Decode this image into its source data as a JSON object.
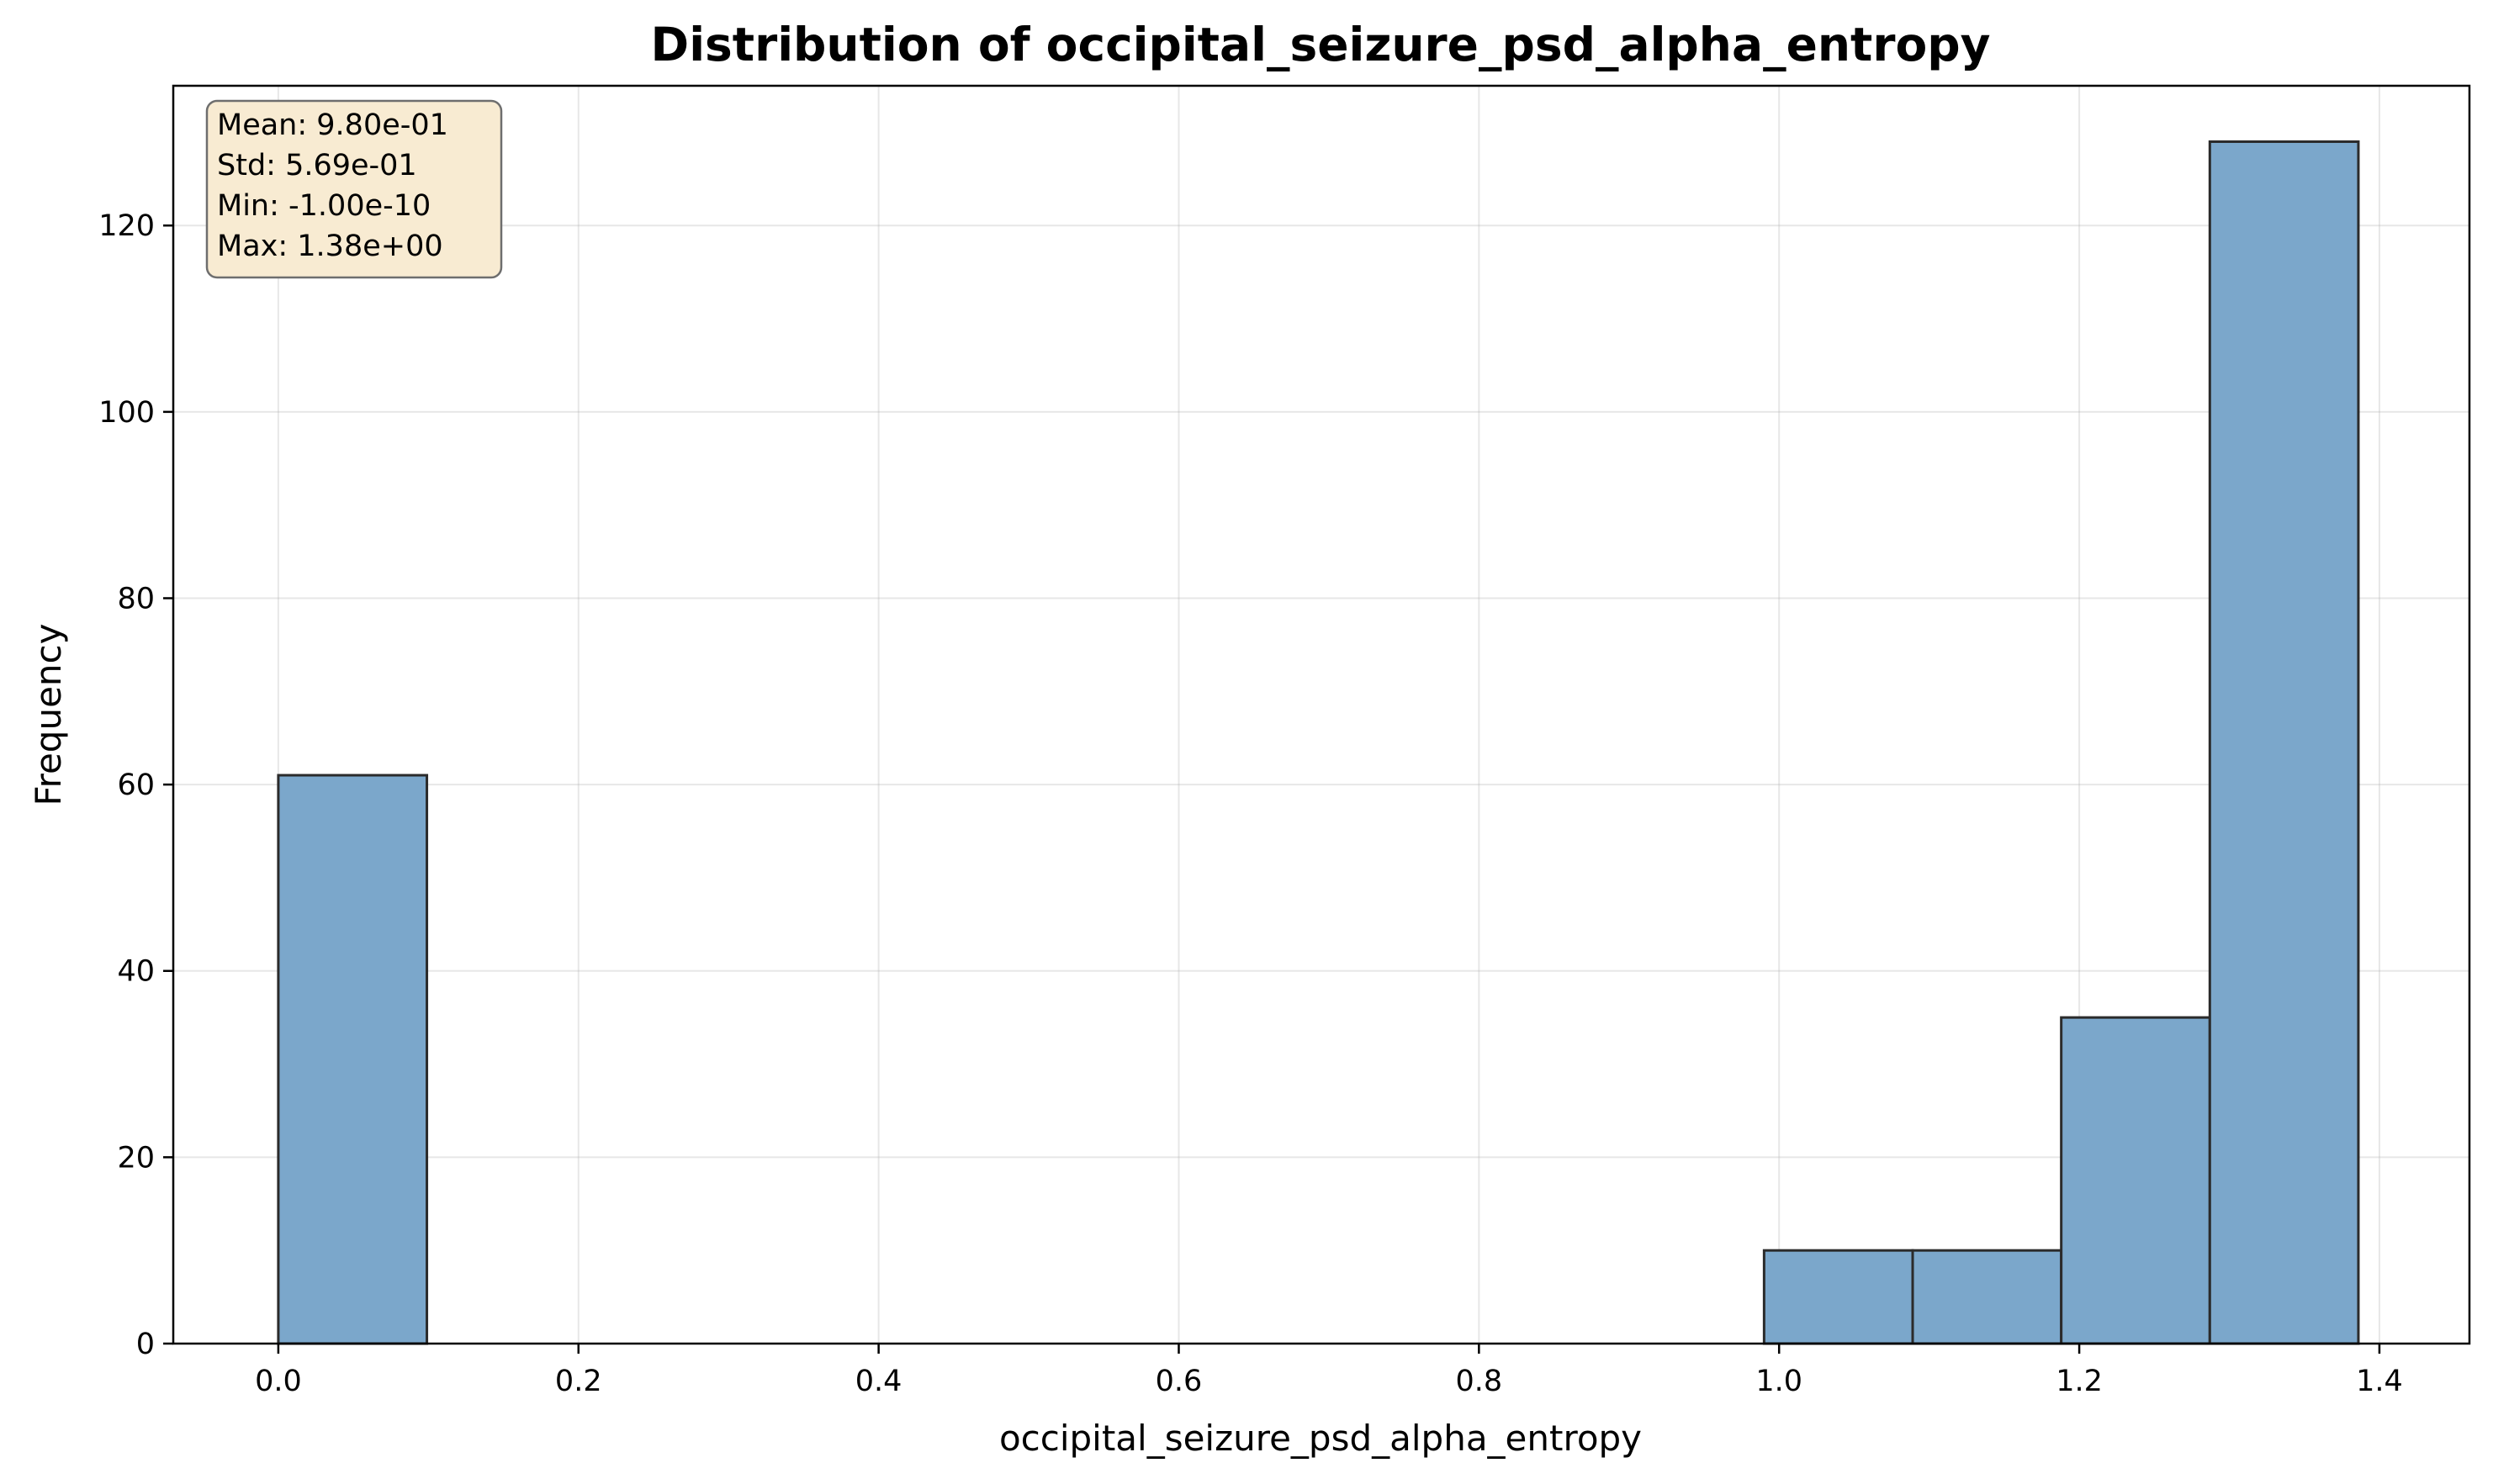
{
  "chart_data": {
    "type": "bar",
    "title": "Distribution of occipital_seizure_psd_alpha_entropy",
    "xlabel": "occipital_seizure_psd_alpha_entropy",
    "ylabel": "Frequency",
    "xlim": [
      -0.07,
      1.46
    ],
    "ylim": [
      0,
      135
    ],
    "xticks": [
      0.0,
      0.2,
      0.4,
      0.6,
      0.8,
      1.0,
      1.2,
      1.4
    ],
    "xtick_labels": [
      "0.0",
      "0.2",
      "0.4",
      "0.6",
      "0.8",
      "1.0",
      "1.2",
      "1.4"
    ],
    "yticks": [
      0,
      20,
      40,
      60,
      80,
      100,
      120
    ],
    "ytick_labels": [
      "0",
      "20",
      "40",
      "60",
      "80",
      "100",
      "120"
    ],
    "grid": true,
    "bar_color": "#7ba7cb",
    "edge_color": "#2b2b2b",
    "bins": [
      {
        "x0": 0.0,
        "x1": 0.099,
        "count": 61
      },
      {
        "x0": 0.099,
        "x1": 0.198,
        "count": 0
      },
      {
        "x0": 0.198,
        "x1": 0.297,
        "count": 0
      },
      {
        "x0": 0.297,
        "x1": 0.396,
        "count": 0
      },
      {
        "x0": 0.396,
        "x1": 0.495,
        "count": 0
      },
      {
        "x0": 0.495,
        "x1": 0.594,
        "count": 0
      },
      {
        "x0": 0.594,
        "x1": 0.693,
        "count": 0
      },
      {
        "x0": 0.693,
        "x1": 0.792,
        "count": 0
      },
      {
        "x0": 0.792,
        "x1": 0.891,
        "count": 0
      },
      {
        "x0": 0.891,
        "x1": 0.99,
        "count": 0
      },
      {
        "x0": 0.99,
        "x1": 1.089,
        "count": 10
      },
      {
        "x0": 1.089,
        "x1": 1.188,
        "count": 10
      },
      {
        "x0": 1.188,
        "x1": 1.287,
        "count": 35
      },
      {
        "x0": 1.287,
        "x1": 1.386,
        "count": 129
      }
    ],
    "stats_box": {
      "lines": [
        "Mean: 9.80e-01",
        "Std: 5.69e-01",
        "Min: -1.00e-10",
        "Max: 1.38e+00"
      ],
      "placement": "top-left",
      "background": "#f8ebd2",
      "border": "#6e6e6e"
    }
  }
}
